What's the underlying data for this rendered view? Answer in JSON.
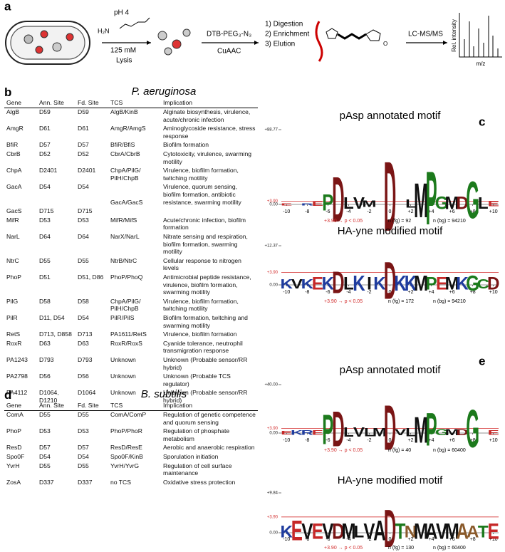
{
  "panel_a": {
    "label": "a",
    "amine": "H₂N",
    "condition": "pH 4",
    "concentration": "125 mM",
    "lysis": "Lysis",
    "probe": "DTB-PEG₃-N₃",
    "click": "CuAAC",
    "steps": [
      "1) Digestion",
      "2) Enrichment",
      "3) Elution"
    ],
    "method": "LC-MS/MS",
    "y_axis": "Rel. intensity",
    "x_axis": "m/z"
  },
  "panel_b": {
    "label": "b",
    "title": "P. aeruginosa",
    "columns": [
      "Gene",
      "Ann. Site",
      "Fd. Site",
      "TCS",
      "Implication"
    ],
    "rows": [
      {
        "gene": "AlgB",
        "ann": "D59",
        "fd": "D59",
        "tcs": "AlgB/KinB",
        "impl": "Alginate biosynthesis, virulence, acute/chronic infection"
      },
      {
        "gene": "AmgR",
        "ann": "D61",
        "fd": "D61",
        "tcs": "AmgR/AmgS",
        "impl": "Aminoglycoside resistance, stress response"
      },
      {
        "gene": "BfiR",
        "ann": "D57",
        "fd": "D57",
        "tcs": "BfiR/BfiS",
        "impl": "Biofilm formation"
      },
      {
        "gene": "CbrB",
        "ann": "D52",
        "fd": "D52",
        "tcs": "CbrA/CbrB",
        "impl": "Cytotoxicity, virulence, swarming motility"
      },
      {
        "gene": "ChpA",
        "ann": "D2401",
        "fd": "D2401",
        "tcs": "ChpA/PilG/ PilH/ChpB",
        "impl": "Virulence, biofilm formation, twitching motility"
      },
      {
        "gene": "GacA",
        "ann": "D54",
        "fd": "D54",
        "tcs": "GacA/GacS",
        "impl": "Virulence, quorum sensing, biofilm formation, antibiotic resistance, swarming motility"
      },
      {
        "gene": "GacS",
        "ann": "D715",
        "fd": "D715"
      },
      {
        "gene": "MifR",
        "ann": "D53",
        "fd": "D53",
        "tcs": "MifR/MifS",
        "impl": "Acute/chronic infection, biofilm formation"
      },
      {
        "gene": "NarL",
        "ann": "D64",
        "fd": "D64",
        "tcs": "NarX/NarL",
        "impl": "Nitrate sensing and respiration, biofilm formation, swarming motility"
      },
      {
        "gene": "NtrC",
        "ann": "D55",
        "fd": "D55",
        "tcs": "NtrB/NtrC",
        "impl": "Cellular response to nitrogen levels"
      },
      {
        "gene": "PhoP",
        "ann": "D51",
        "fd": "D51, D86",
        "tcs": "PhoP/PhoQ",
        "impl": "Antimicrobial peptide resistance, virulence, biofilm formation, swarming motility"
      },
      {
        "gene": "PilG",
        "ann": "D58",
        "fd": "D58",
        "tcs": "ChpA/PilG/ PilH/ChpB",
        "impl": "Virulence, biofilm formation, twitching motility"
      },
      {
        "gene": "PilR",
        "ann": "D11, D54",
        "fd": "D54",
        "tcs": "PilR/PilS",
        "impl": "Biofilm formation, twitching and swarming motility"
      },
      {
        "gene": "RetS",
        "ann": "D713, D858",
        "fd": "D713",
        "tcs": "PA1611/RetS",
        "impl": "Virulence, biofilm formation"
      },
      {
        "gene": "RoxR",
        "ann": "D63",
        "fd": "D63",
        "tcs": "RoxR/RoxS",
        "impl": "Cyanide tolerance, neutrophil transmigration response"
      },
      {
        "gene": "PA1243",
        "ann": "D793",
        "fd": "D793",
        "tcs": "Unknown",
        "impl": "Unknown (Probable sensor/RR hybrid)"
      },
      {
        "gene": "PA2798",
        "ann": "D56",
        "fd": "D56",
        "tcs": "Unknown",
        "impl": "Unknown (Probable TCS regulator)"
      },
      {
        "gene": "PA4112",
        "ann": "D1064, D1210",
        "fd": "D1064",
        "tcs": "Unknown",
        "impl": "Unknown (Probable sensor/RR hybrid)"
      }
    ]
  },
  "panel_d": {
    "label": "d",
    "title": "B. subtilis",
    "columns": [
      "Gene",
      "Ann. Site",
      "Fd. Site",
      "TCS",
      "Implication"
    ],
    "rows": [
      {
        "gene": "ComA",
        "ann": "D55",
        "fd": "D55",
        "tcs": "ComA/ComP",
        "impl": "Regulation of genetic competence and quorum sensing"
      },
      {
        "gene": "PhoP",
        "ann": "D53",
        "fd": "D53",
        "tcs": "PhoP/PhoR",
        "impl": "Regulation of phosphate metabolism"
      },
      {
        "gene": "ResD",
        "ann": "D57",
        "fd": "D57",
        "tcs": "ResD/ResE",
        "impl": "Aerobic and anaerobic respiration"
      },
      {
        "gene": "Spo0F",
        "ann": "D54",
        "fd": "D54",
        "tcs": "Spo0F/KinB",
        "impl": "Sporulation initiation"
      },
      {
        "gene": "YvrH",
        "ann": "D55",
        "fd": "D55",
        "tcs": "YvrH/YvrG",
        "impl": "Regulation of cell surface maintenance"
      },
      {
        "gene": "ZosA",
        "ann": "D337",
        "fd": "D337",
        "tcs": "no TCS",
        "impl": "Oxidative stress protection"
      }
    ]
  },
  "logo_labels": [
    "c",
    "e"
  ],
  "logo_xticks": [
    -10,
    -8,
    -6,
    -4,
    -2,
    0,
    {
      "value": 2,
      "label": "+2"
    },
    {
      "value": 4,
      "label": "+4"
    },
    {
      "value": 6,
      "label": "+6"
    },
    {
      "value": 8,
      "label": "+8"
    },
    {
      "value": 10,
      "label": "+10"
    }
  ],
  "logo_xlim": [
    -10.5,
    10.5
  ],
  "logos": [
    {
      "title": "pAsp annotated motif",
      "ylim": [
        0,
        88.77
      ],
      "yticks": [
        {
          "value": 0,
          "label": "0.00"
        },
        {
          "value": 3.9,
          "label": "+3.90"
        },
        {
          "value": 88.77,
          "label": "+88.77"
        }
      ],
      "threshold": "+3.90 → p < 0.05",
      "n_fg": "n (fg) = 92",
      "n_bg": "n (bg) = 94210",
      "letters": [
        {
          "letter": "E",
          "pos": -10,
          "height": 3,
          "color": "#c62828"
        },
        {
          "letter": "R",
          "pos": -8,
          "height": 3,
          "color": "#1f3c9e"
        },
        {
          "letter": "E",
          "pos": -7,
          "height": 5,
          "color": "#c62828"
        },
        {
          "letter": "P",
          "pos": -6,
          "height": 20,
          "color": "#1c7a1c"
        },
        {
          "letter": "D",
          "pos": -5,
          "height": 55,
          "color": "#7a1515"
        },
        {
          "letter": "L",
          "pos": -4,
          "height": 14,
          "color": "#111111"
        },
        {
          "letter": "V",
          "pos": -3,
          "height": 14,
          "color": "#111111"
        },
        {
          "letter": "M",
          "pos": -2,
          "height": 8,
          "color": "#111111"
        },
        {
          "letter": "D",
          "pos": 0,
          "height": 85,
          "color": "#7a1515"
        },
        {
          "letter": "L",
          "pos": 2,
          "height": 10,
          "color": "#111111"
        },
        {
          "letter": "M",
          "pos": 3,
          "height": 42,
          "color": "#111111"
        },
        {
          "letter": "P",
          "pos": 4,
          "height": 65,
          "color": "#1c7a1c"
        },
        {
          "letter": "G",
          "pos": 5,
          "height": 15,
          "color": "#1c7a1c"
        },
        {
          "letter": "M",
          "pos": 6,
          "height": 15,
          "color": "#111111"
        },
        {
          "letter": "D",
          "pos": 7,
          "height": 15,
          "color": "#7a1515"
        },
        {
          "letter": "G",
          "pos": 8,
          "height": 45,
          "color": "#1c7a1c"
        },
        {
          "letter": "L",
          "pos": 9,
          "height": 14,
          "color": "#111111"
        },
        {
          "letter": "E",
          "pos": 10,
          "height": 6,
          "color": "#c62828"
        }
      ]
    },
    {
      "title": "HA-yne modified motif",
      "ylim": [
        0,
        12.37
      ],
      "yticks": [
        {
          "value": 0,
          "label": "0.00"
        },
        {
          "value": 3.9,
          "label": "+3.90"
        },
        {
          "value": 12.37,
          "label": "+12.37"
        }
      ],
      "threshold": "+3.90 → p < 0.05",
      "n_fg": "n (fg) = 172",
      "n_bg": "n (bg) = 94210",
      "letters": [
        {
          "letter": "K",
          "pos": -10,
          "height": 3,
          "color": "#1f3c9e"
        },
        {
          "letter": "V",
          "pos": -9,
          "height": 3,
          "color": "#111111"
        },
        {
          "letter": "K",
          "pos": -8,
          "height": 3,
          "color": "#1f3c9e"
        },
        {
          "letter": "E",
          "pos": -7,
          "height": 4,
          "color": "#c62828"
        },
        {
          "letter": "K",
          "pos": -6,
          "height": 4,
          "color": "#1f3c9e"
        },
        {
          "letter": "D",
          "pos": -5,
          "height": 7,
          "color": "#7a1515"
        },
        {
          "letter": "L",
          "pos": -4,
          "height": 4,
          "color": "#111111"
        },
        {
          "letter": "K",
          "pos": -3,
          "height": 5,
          "color": "#1f3c9e"
        },
        {
          "letter": "I",
          "pos": -2,
          "height": 4,
          "color": "#111111"
        },
        {
          "letter": "K",
          "pos": -1,
          "height": 4,
          "color": "#1f3c9e"
        },
        {
          "letter": "D",
          "pos": 0,
          "height": 12,
          "color": "#7a1515"
        },
        {
          "letter": "K",
          "pos": 1,
          "height": 5,
          "color": "#1f3c9e"
        },
        {
          "letter": "K",
          "pos": 2,
          "height": 5,
          "color": "#1f3c9e"
        },
        {
          "letter": "M",
          "pos": 3,
          "height": 5,
          "color": "#111111"
        },
        {
          "letter": "P",
          "pos": 4,
          "height": 4,
          "color": "#1c7a1c"
        },
        {
          "letter": "E",
          "pos": 5,
          "height": 4,
          "color": "#c62828"
        },
        {
          "letter": "M",
          "pos": 6,
          "height": 4,
          "color": "#111111"
        },
        {
          "letter": "K",
          "pos": 7,
          "height": 4,
          "color": "#1f3c9e"
        },
        {
          "letter": "G",
          "pos": 8,
          "height": 5,
          "color": "#1c7a1c"
        },
        {
          "letter": "C",
          "pos": 9,
          "height": 3,
          "color": "#1c7a1c"
        },
        {
          "letter": "D",
          "pos": 10,
          "height": 4,
          "color": "#7a1515"
        }
      ]
    },
    {
      "title": "pAsp annotated motif",
      "ylim": [
        0,
        40
      ],
      "yticks": [
        {
          "value": 0,
          "label": "0.00"
        },
        {
          "value": 3.9,
          "label": "+3.90"
        },
        {
          "value": 40,
          "label": "+40.00"
        }
      ],
      "threshold": "+3.90 → p < 0.05",
      "n_fg": "n (fg) = 40",
      "n_bg": "n (bg) = 60400",
      "letters": [
        {
          "letter": "E",
          "pos": -10,
          "height": 3,
          "color": "#c62828"
        },
        {
          "letter": "K",
          "pos": -9,
          "height": 4,
          "color": "#1f3c9e"
        },
        {
          "letter": "R",
          "pos": -8,
          "height": 4,
          "color": "#1f3c9e"
        },
        {
          "letter": "E",
          "pos": -7,
          "height": 4,
          "color": "#c62828"
        },
        {
          "letter": "P",
          "pos": -6,
          "height": 25,
          "color": "#1c7a1c"
        },
        {
          "letter": "D",
          "pos": -5,
          "height": 30,
          "color": "#7a1515"
        },
        {
          "letter": "L",
          "pos": -4,
          "height": 8,
          "color": "#111111"
        },
        {
          "letter": "V",
          "pos": -3,
          "height": 8,
          "color": "#111111"
        },
        {
          "letter": "L",
          "pos": -2,
          "height": 7,
          "color": "#111111"
        },
        {
          "letter": "M",
          "pos": -1,
          "height": 7,
          "color": "#111111"
        },
        {
          "letter": "D",
          "pos": 0,
          "height": 38,
          "color": "#7a1515"
        },
        {
          "letter": "V",
          "pos": 1,
          "height": 5,
          "color": "#111111"
        },
        {
          "letter": "L",
          "pos": 2,
          "height": 7,
          "color": "#111111"
        },
        {
          "letter": "M",
          "pos": 3,
          "height": 22,
          "color": "#111111"
        },
        {
          "letter": "P",
          "pos": 4,
          "height": 28,
          "color": "#1c7a1c"
        },
        {
          "letter": "G",
          "pos": 5,
          "height": 5,
          "color": "#1c7a1c"
        },
        {
          "letter": "M",
          "pos": 6,
          "height": 5,
          "color": "#111111"
        },
        {
          "letter": "D",
          "pos": 7,
          "height": 5,
          "color": "#7a1515"
        },
        {
          "letter": "G",
          "pos": 8,
          "height": 32,
          "color": "#1c7a1c"
        },
        {
          "letter": "E",
          "pos": 10,
          "height": 4,
          "color": "#c62828"
        }
      ]
    },
    {
      "title": "HA-yne modified motif",
      "ylim": [
        0,
        9.84
      ],
      "yticks": [
        {
          "value": 0,
          "label": "0.00"
        },
        {
          "value": 3.9,
          "label": "+3.90"
        },
        {
          "value": 9.84,
          "label": "+9.84"
        }
      ],
      "threshold": "+3.90 → p < 0.05",
      "n_fg": "n (fg) = 130",
      "n_bg": "n (bg) = 60400",
      "letters": [
        {
          "letter": "K",
          "pos": -10,
          "height": 3,
          "color": "#1f3c9e"
        },
        {
          "letter": "E",
          "pos": -9,
          "height": 5,
          "color": "#c62828"
        },
        {
          "letter": "V",
          "pos": -8,
          "height": 4,
          "color": "#111111"
        },
        {
          "letter": "E",
          "pos": -7,
          "height": 4,
          "color": "#c62828"
        },
        {
          "letter": "V",
          "pos": -6,
          "height": 4,
          "color": "#111111"
        },
        {
          "letter": "D",
          "pos": -5,
          "height": 4,
          "color": "#7a1515"
        },
        {
          "letter": "M",
          "pos": -4,
          "height": 4,
          "color": "#111111"
        },
        {
          "letter": "L",
          "pos": -3,
          "height": 3,
          "color": "#111111"
        },
        {
          "letter": "V",
          "pos": -2,
          "height": 4,
          "color": "#111111"
        },
        {
          "letter": "A",
          "pos": -1,
          "height": 5,
          "color": "#111111"
        },
        {
          "letter": "D",
          "pos": 0,
          "height": 9.5,
          "color": "#7a1515"
        },
        {
          "letter": "T",
          "pos": 1,
          "height": 4,
          "color": "#1c7a1c"
        },
        {
          "letter": "N",
          "pos": 2,
          "height": 3,
          "color": "#8a5a2b"
        },
        {
          "letter": "M",
          "pos": 3,
          "height": 4,
          "color": "#111111"
        },
        {
          "letter": "A",
          "pos": 4,
          "height": 4,
          "color": "#111111"
        },
        {
          "letter": "V",
          "pos": 5,
          "height": 4,
          "color": "#111111"
        },
        {
          "letter": "M",
          "pos": 6,
          "height": 4,
          "color": "#111111"
        },
        {
          "letter": "A",
          "pos": 7,
          "height": 4,
          "color": "#8a5a2b"
        },
        {
          "letter": "A",
          "pos": 8,
          "height": 3,
          "color": "#8a5a2b"
        },
        {
          "letter": "T",
          "pos": 9,
          "height": 3,
          "color": "#1c7a1c"
        },
        {
          "letter": "E",
          "pos": 10,
          "height": 4,
          "color": "#c62828"
        }
      ]
    }
  ]
}
